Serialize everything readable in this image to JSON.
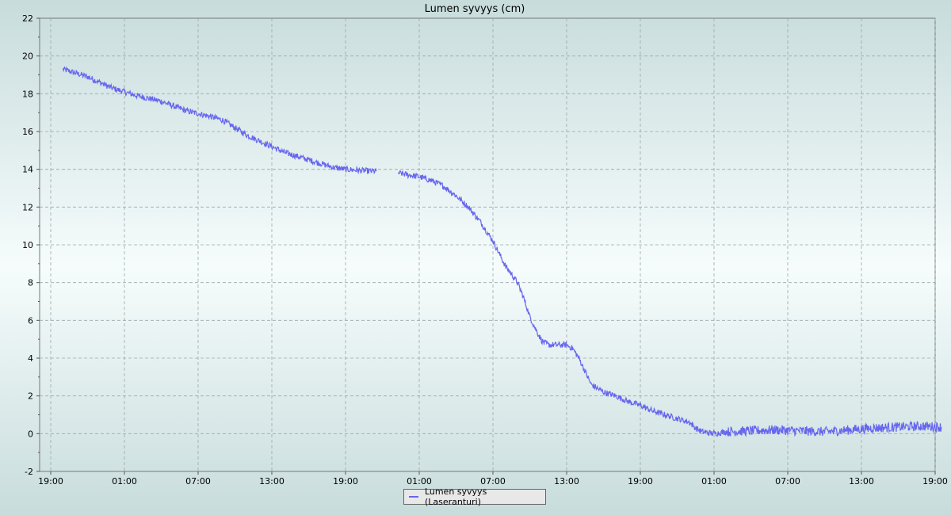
{
  "chart_data": {
    "type": "line",
    "title": "Lumen syvyys (cm)",
    "xlabel": "",
    "ylabel": "",
    "x_unit": "hours since first tick (19:00)",
    "x_ticks": [
      {
        "label": "19:00",
        "hour": 0
      },
      {
        "label": "01:00",
        "hour": 6
      },
      {
        "label": "07:00",
        "hour": 12
      },
      {
        "label": "13:00",
        "hour": 18
      },
      {
        "label": "19:00",
        "hour": 24
      },
      {
        "label": "01:00",
        "hour": 30
      },
      {
        "label": "07:00",
        "hour": 36
      },
      {
        "label": "13:00",
        "hour": 42
      },
      {
        "label": "19:00",
        "hour": 48
      },
      {
        "label": "01:00",
        "hour": 54
      },
      {
        "label": "07:00",
        "hour": 60
      },
      {
        "label": "13:00",
        "hour": 66
      },
      {
        "label": "19:00",
        "hour": 72
      }
    ],
    "xlim": [
      0,
      72.5
    ],
    "ylim": [
      -2,
      22
    ],
    "y_ticks": [
      -2,
      0,
      2,
      4,
      6,
      8,
      10,
      12,
      14,
      16,
      18,
      20,
      22
    ],
    "grid": true,
    "legend_position": "bottom-center",
    "series": [
      {
        "name": "Lumen syvyys (Laseranturi)",
        "color": "#6666ee",
        "segments": [
          [
            [
              1,
              19.3
            ],
            [
              3,
              18.9
            ],
            [
              5,
              18.3
            ],
            [
              7,
              17.9
            ],
            [
              9,
              17.6
            ],
            [
              11,
              17.1
            ],
            [
              13,
              16.8
            ],
            [
              14,
              16.6
            ],
            [
              15,
              16.2
            ],
            [
              16,
              15.8
            ],
            [
              17,
              15.5
            ],
            [
              18,
              15.2
            ],
            [
              19,
              14.9
            ],
            [
              20,
              14.7
            ],
            [
              21,
              14.5
            ],
            [
              22,
              14.3
            ],
            [
              23,
              14.1
            ],
            [
              24,
              14.0
            ],
            [
              26,
              13.9
            ],
            [
              26.5,
              13.9
            ]
          ],
          [
            [
              28.3,
              13.8
            ],
            [
              30,
              13.6
            ],
            [
              31,
              13.4
            ],
            [
              32,
              13.1
            ],
            [
              33,
              12.6
            ],
            [
              34,
              12.0
            ],
            [
              35,
              11.2
            ],
            [
              36,
              10.2
            ],
            [
              37,
              8.9
            ],
            [
              38,
              8.0
            ],
            [
              38.5,
              7.2
            ],
            [
              39,
              6.2
            ],
            [
              39.5,
              5.5
            ],
            [
              40,
              4.9
            ],
            [
              40.5,
              4.7
            ],
            [
              41,
              4.7
            ],
            [
              42,
              4.7
            ],
            [
              42.5,
              4.5
            ],
            [
              43,
              4.0
            ],
            [
              43.5,
              3.3
            ],
            [
              44,
              2.6
            ],
            [
              45,
              2.2
            ],
            [
              46,
              2.0
            ],
            [
              47,
              1.7
            ],
            [
              48,
              1.5
            ],
            [
              49,
              1.2
            ],
            [
              50,
              1.0
            ],
            [
              51,
              0.8
            ],
            [
              52,
              0.6
            ],
            [
              52.5,
              0.3
            ],
            [
              53,
              0.1
            ],
            [
              54,
              0.0
            ],
            [
              55,
              0.1
            ],
            [
              57,
              0.15
            ],
            [
              59,
              0.2
            ],
            [
              61,
              0.15
            ],
            [
              63,
              0.1
            ],
            [
              65,
              0.2
            ],
            [
              67,
              0.3
            ],
            [
              69,
              0.35
            ],
            [
              71,
              0.4
            ],
            [
              72.5,
              0.35
            ]
          ]
        ]
      }
    ]
  }
}
